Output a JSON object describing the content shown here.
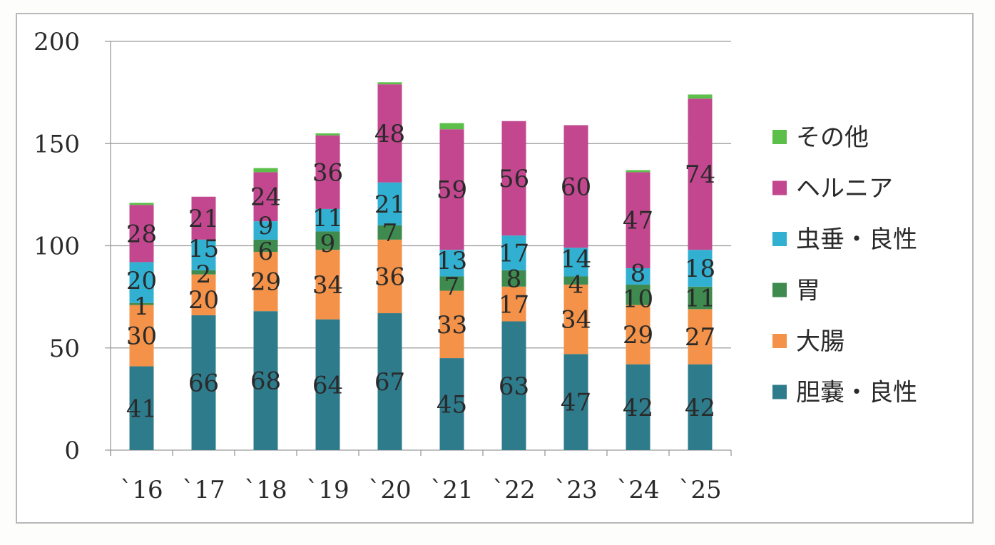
{
  "chart_data": {
    "type": "bar",
    "stacked": true,
    "title": "",
    "xlabel": "",
    "ylabel": "",
    "ylim": [
      0,
      200
    ],
    "yticks": [
      0,
      50,
      100,
      150,
      200
    ],
    "grid": true,
    "legend_position": "right",
    "categories": [
      "`16",
      "`17",
      "`18",
      "`19",
      "`20",
      "`21",
      "`22",
      "`23",
      "`24",
      "`25"
    ],
    "series": [
      {
        "name": "胆嚢・良性",
        "color": "#2e7b8c",
        "values": [
          41,
          66,
          68,
          64,
          67,
          45,
          63,
          47,
          42,
          42
        ],
        "labels": [
          "41",
          "66",
          "68",
          "64",
          "67",
          "45",
          "63",
          "47",
          "42",
          "42"
        ]
      },
      {
        "name": "大腸",
        "color": "#f39248",
        "values": [
          30,
          20,
          29,
          34,
          36,
          33,
          17,
          34,
          29,
          27
        ],
        "labels": [
          "30",
          "20",
          "29",
          "34",
          "36",
          "33",
          "17",
          "34",
          "29",
          "27"
        ]
      },
      {
        "name": "胃",
        "color": "#3f8a4e",
        "values": [
          1,
          2,
          6,
          9,
          7,
          7,
          8,
          4,
          10,
          11
        ],
        "labels": [
          "1",
          "2",
          "6",
          "9",
          "7",
          "7",
          "8",
          "4",
          "10",
          "11"
        ]
      },
      {
        "name": "虫垂・良性",
        "color": "#32b0d2",
        "values": [
          20,
          15,
          9,
          11,
          21,
          13,
          17,
          14,
          8,
          18
        ],
        "labels": [
          "20",
          "15",
          "9",
          "11",
          "21",
          "13",
          "17",
          "14",
          "8",
          "18"
        ]
      },
      {
        "name": "ヘルニア",
        "color": "#c2478f",
        "values": [
          28,
          21,
          24,
          36,
          48,
          59,
          56,
          60,
          47,
          74
        ],
        "labels": [
          "28",
          "21",
          "24",
          "36",
          "48",
          "59",
          "56",
          "60",
          "47",
          "74"
        ]
      },
      {
        "name": "その他",
        "color": "#5cbf4a",
        "values": [
          1,
          0,
          2,
          1,
          1,
          3,
          0,
          0,
          1,
          2
        ],
        "labels": []
      }
    ]
  }
}
